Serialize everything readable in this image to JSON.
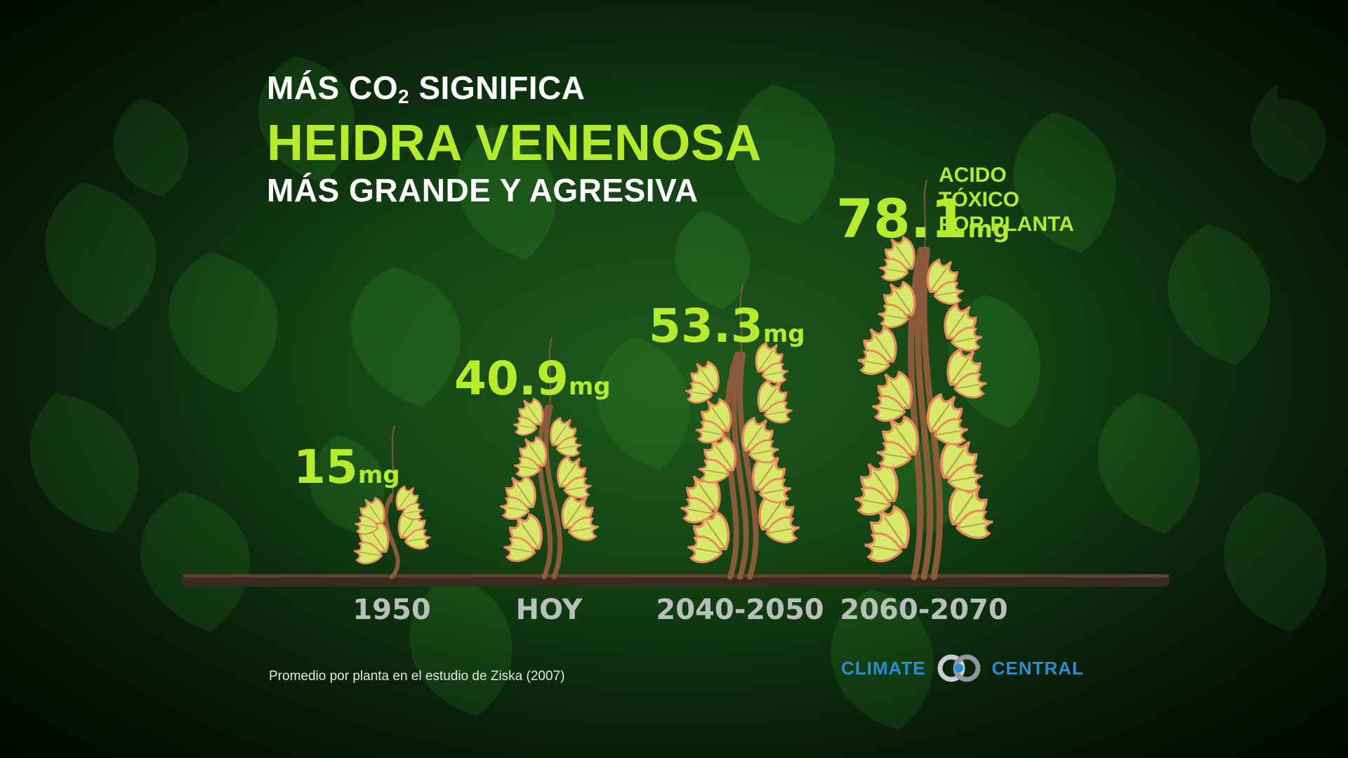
{
  "headline": {
    "line1_pre": "MÁS CO",
    "line1_sub": "2",
    "line1_post": " SIGNIFICA",
    "line2": "HEIDRA VENENOSA",
    "line3": "MÁS GRANDE Y AGRESIVA"
  },
  "unit_note": {
    "lines": [
      "ACIDO",
      "TÓXICO",
      "POR PLANTA"
    ]
  },
  "source": "Promedio por planta en el estudio de Ziska (2007)",
  "brand": {
    "left": "CLIMATE",
    "right": "CENTRAL",
    "color": "#2a8bd6"
  },
  "colors": {
    "accent": "#b6ea2c",
    "leaf_fill": "#d8e86a",
    "leaf_edge": "#e88a5a",
    "stem": "#8a5a3a",
    "ground": "#3a2a1e"
  },
  "chart_data": {
    "type": "bar",
    "categories": [
      "1950",
      "HOY",
      "2040-2050",
      "2060-2070"
    ],
    "values": [
      15,
      40.9,
      53.3,
      78.1
    ],
    "value_labels": [
      "15",
      "40.9",
      "53.3",
      "78.1"
    ],
    "unit": "mg",
    "title": "MÁS CO2 SIGNIFICA HEIDRA VENENOSA MÁS GRANDE Y AGRESIVA",
    "ylabel": "ACIDO TÓXICO POR PLANTA",
    "mark": "plant-illustration",
    "grid": false
  }
}
